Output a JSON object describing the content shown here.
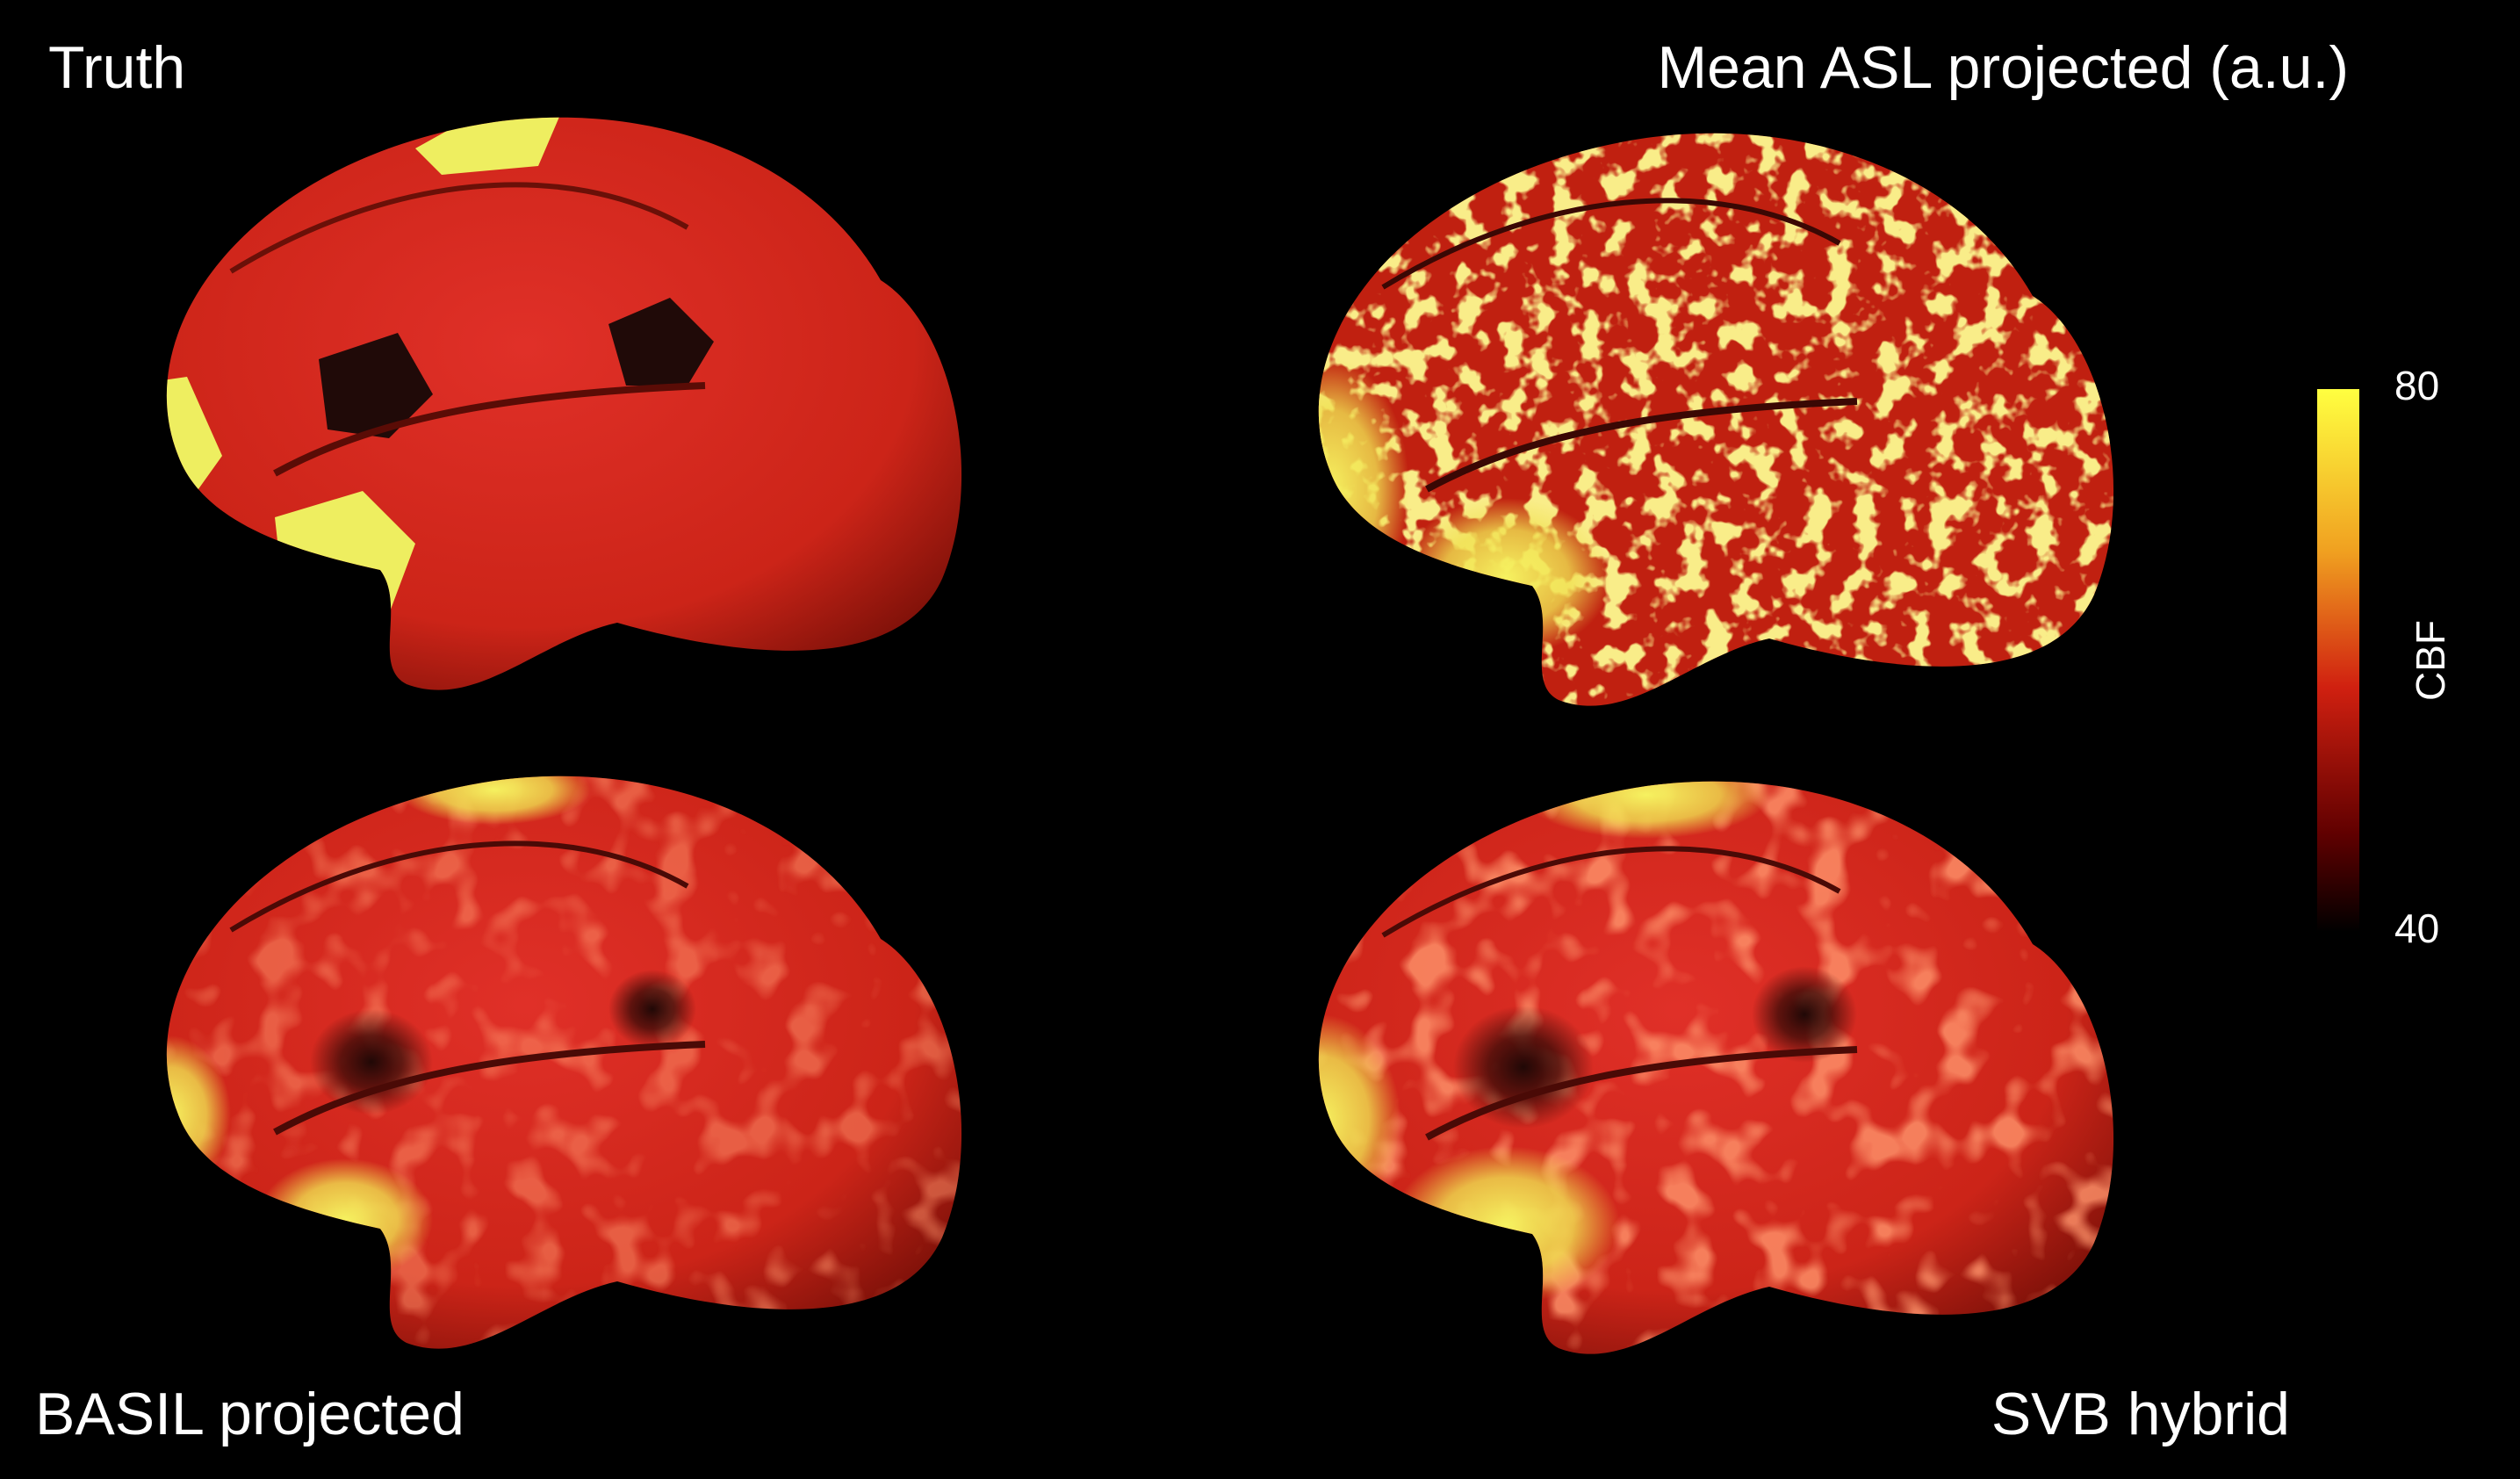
{
  "panels": [
    {
      "title": "Truth"
    },
    {
      "title": "Mean ASL projected (a.u.)"
    },
    {
      "title": "BASIL projected"
    },
    {
      "title": "SVB hybrid"
    }
  ],
  "colorbar": {
    "label": "CBF",
    "lim": [
      40,
      80
    ],
    "ticks": [
      80,
      40
    ]
  }
}
